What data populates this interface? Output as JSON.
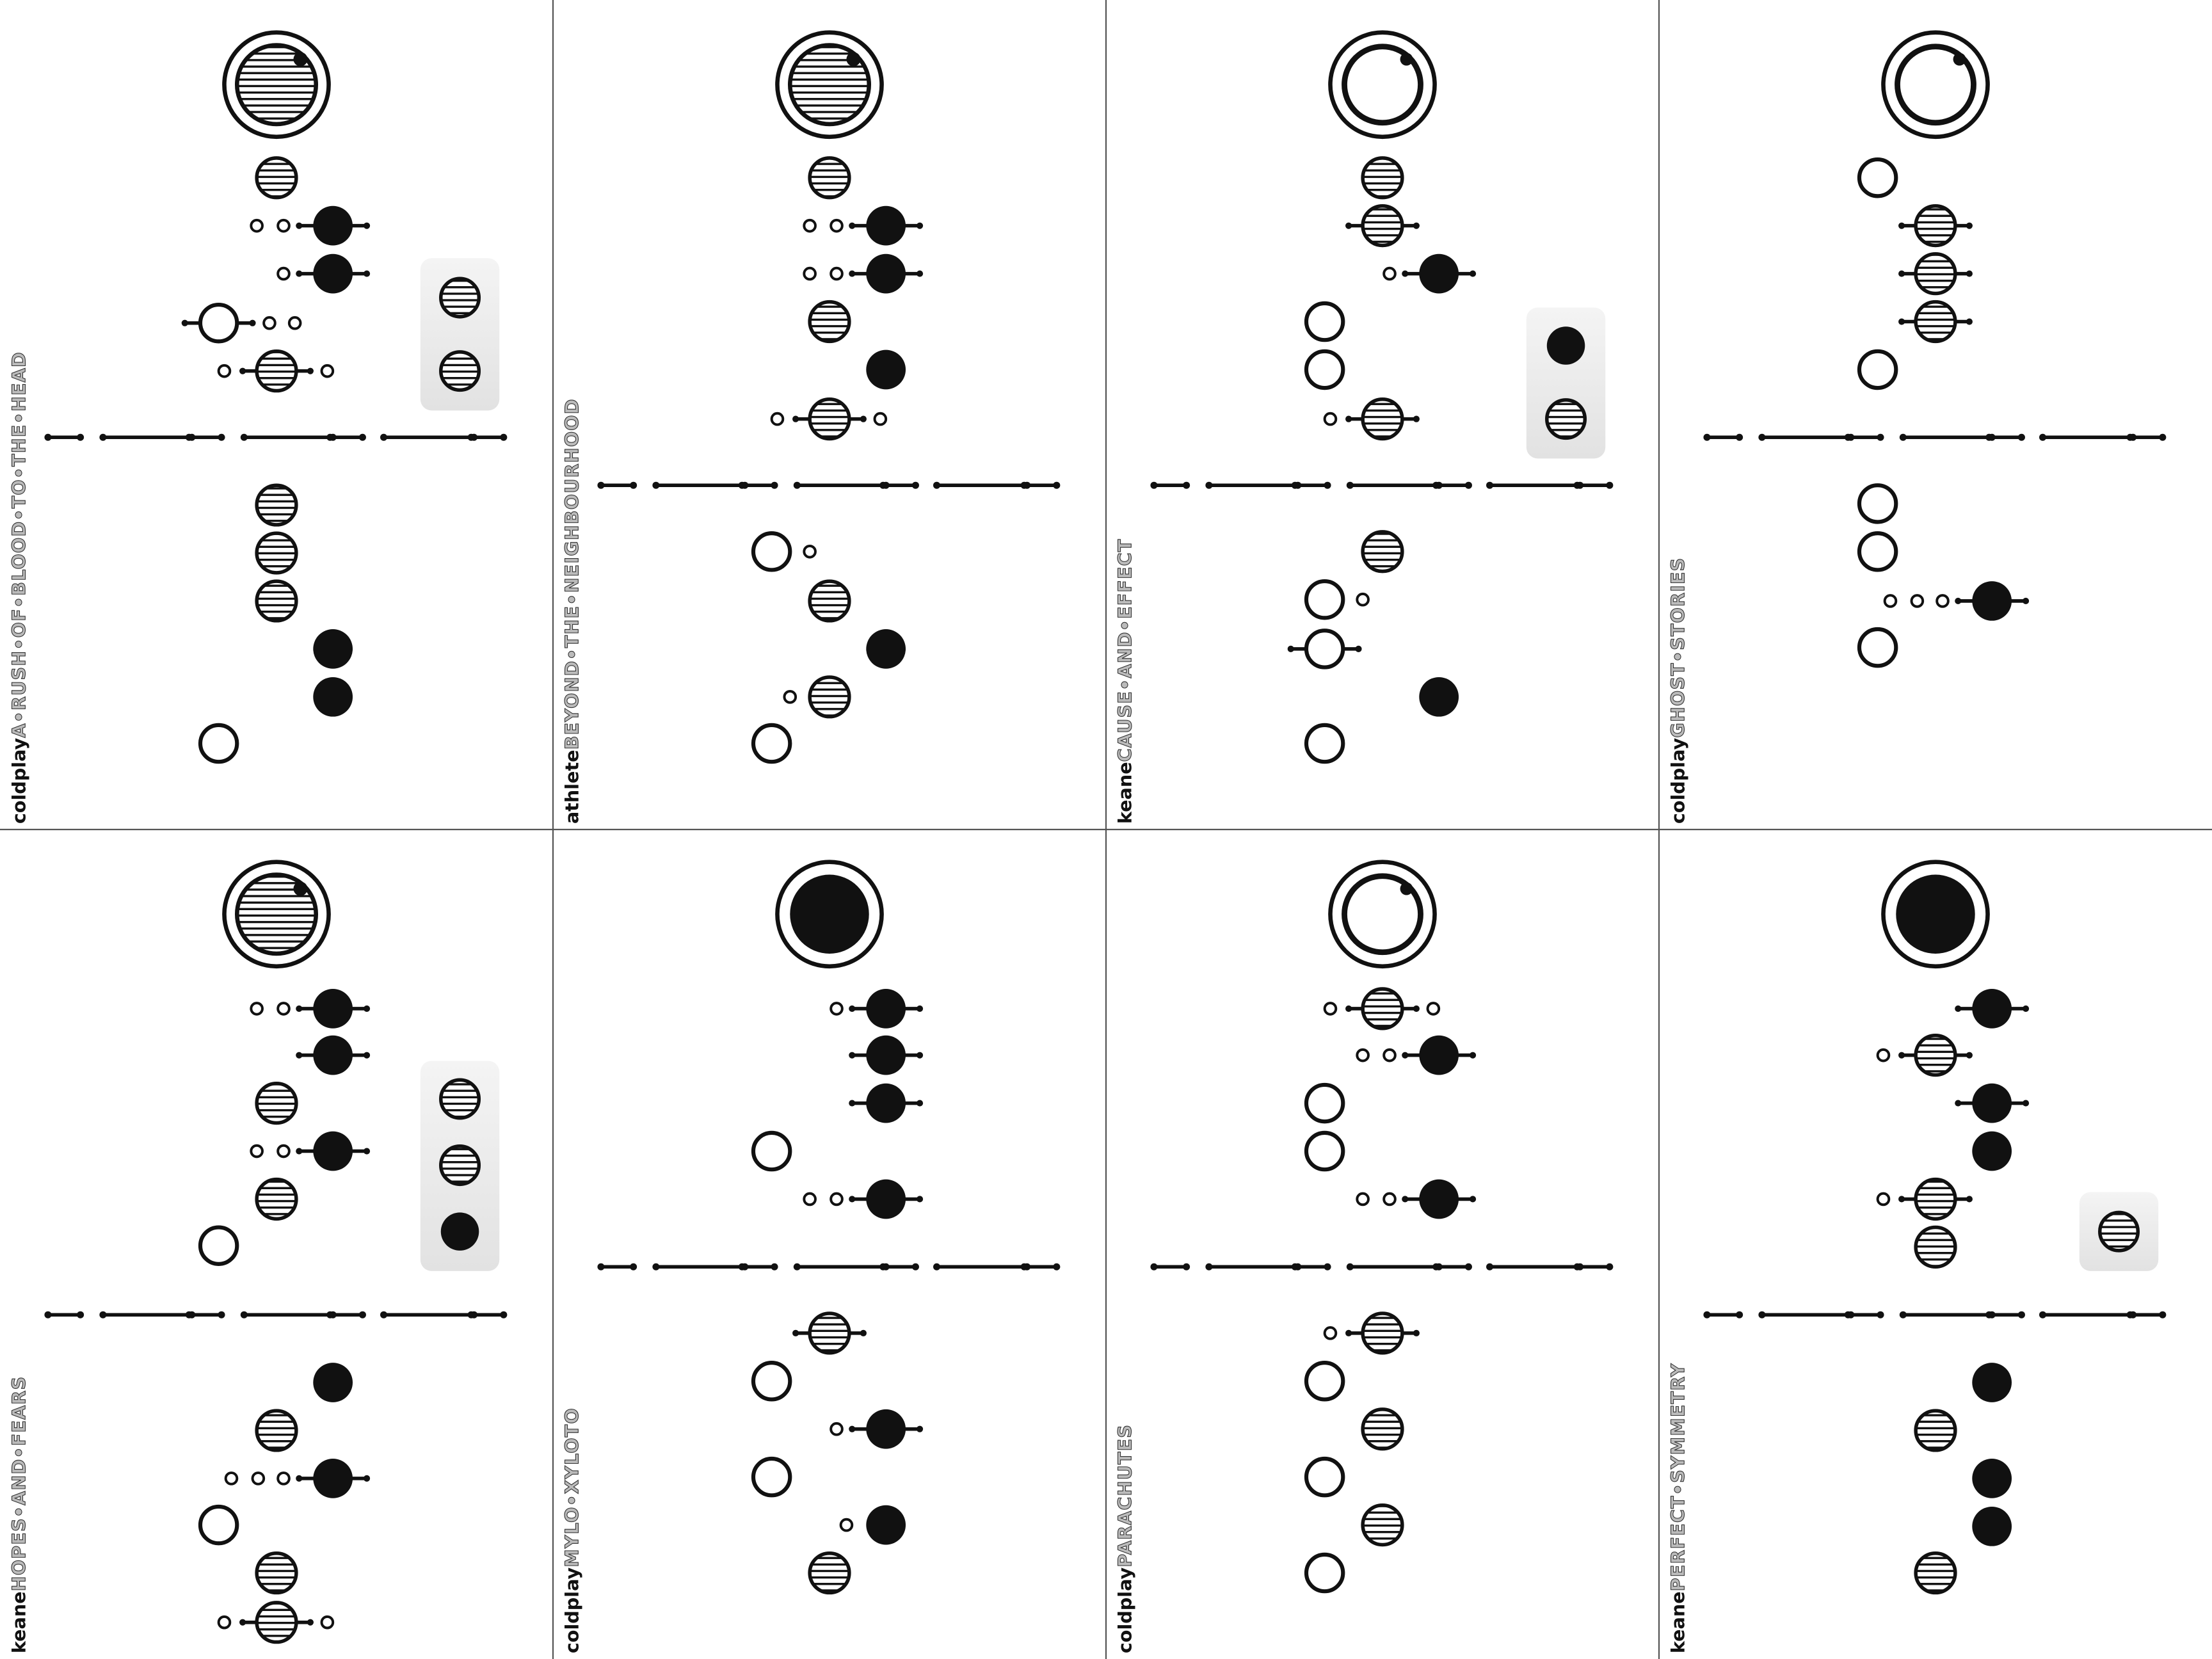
{
  "cards": [
    {
      "artist": "coldplay",
      "title": "A•RUSH•OF•BLOOD•TO•THE•HEAD"
    },
    {
      "artist": "athlete",
      "title": "BEYOND•THE•NEIGHBOURHOOD"
    },
    {
      "artist": "keane",
      "title": "CAUSE•AND•EFFECT"
    },
    {
      "artist": "coldplay",
      "title": "GHOST•STORIES"
    },
    {
      "artist": "keane",
      "title": "HOPES•AND•FEARS"
    },
    {
      "artist": "coldplay",
      "title": "MYLO•XYLOTO"
    },
    {
      "artist": "coldplay",
      "title": "PARACHUTES"
    },
    {
      "artist": "keane",
      "title": "PERFECT•SYMMETRY"
    }
  ]
}
